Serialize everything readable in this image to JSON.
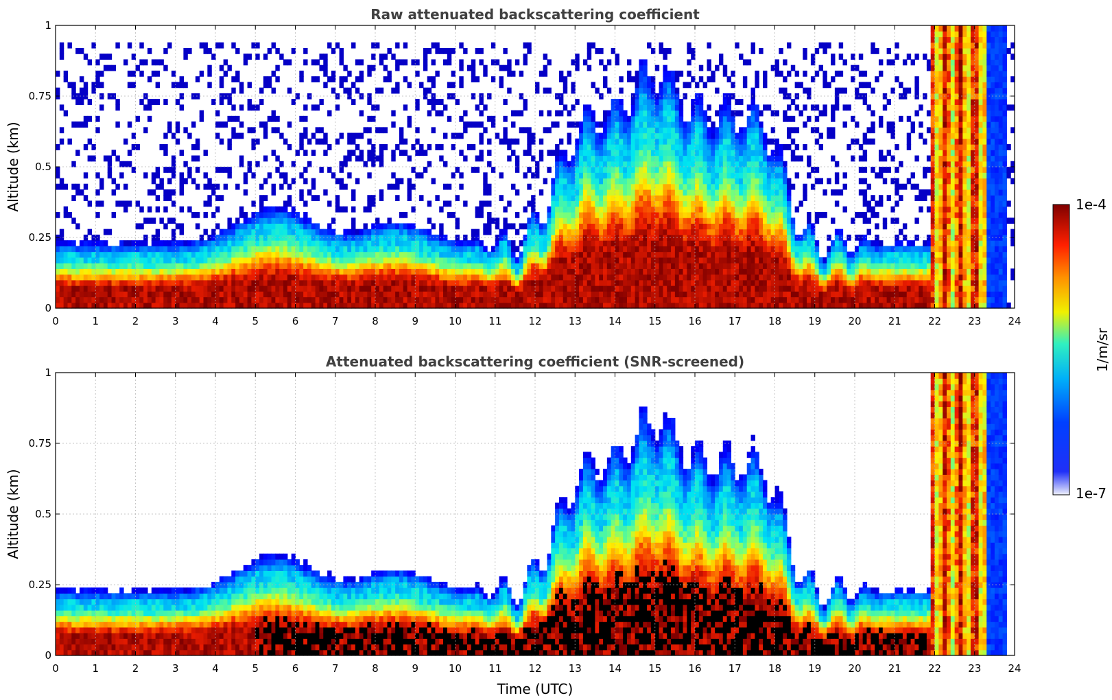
{
  "chart_data": [
    {
      "type": "heatmap",
      "title": "Raw attenuated backscattering coefficient",
      "xlabel": "",
      "ylabel": "Altitude (km)",
      "xlim": [
        0,
        24
      ],
      "ylim": [
        0,
        1
      ],
      "xticks": [
        "0",
        "1",
        "2",
        "3",
        "4",
        "5",
        "6",
        "7",
        "8",
        "9",
        "10",
        "11",
        "12",
        "13",
        "14",
        "15",
        "16",
        "17",
        "18",
        "19",
        "20",
        "21",
        "22",
        "23",
        "24"
      ],
      "yticks": [
        "0",
        "0.25",
        "0.5",
        "0.75",
        "1"
      ],
      "grid": true,
      "colormap": "jet",
      "screened": false
    },
    {
      "type": "heatmap",
      "title": "Attenuated backscattering coefficient (SNR-screened)",
      "xlabel": "Time (UTC)",
      "ylabel": "Altitude (km)",
      "xlim": [
        0,
        24
      ],
      "ylim": [
        0,
        1
      ],
      "xticks": [
        "0",
        "1",
        "2",
        "3",
        "4",
        "5",
        "6",
        "7",
        "8",
        "9",
        "10",
        "11",
        "12",
        "13",
        "14",
        "15",
        "16",
        "17",
        "18",
        "19",
        "20",
        "21",
        "22",
        "23",
        "24"
      ],
      "yticks": [
        "0",
        "0.25",
        "0.5",
        "0.75",
        "1"
      ],
      "grid": true,
      "colormap": "jet",
      "screened": true
    }
  ],
  "colorbar": {
    "label": "1/m/sr",
    "max_label": "1e-4",
    "min_label": "1e-7",
    "scale": "log",
    "colors": [
      "#eef0fb",
      "#0010f0",
      "#00c8f0",
      "#f0f000",
      "#ff3000",
      "#800000"
    ]
  }
}
